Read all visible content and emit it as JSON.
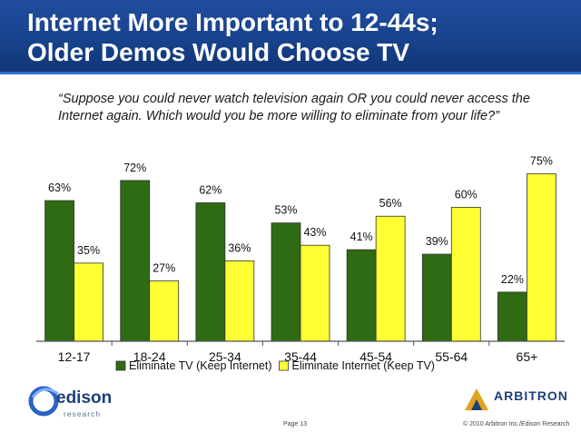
{
  "header": {
    "title": "Internet More Important to 12-44s;\nOlder Demos Would Choose TV"
  },
  "question": "“Suppose you could never watch television again OR you could never access the Internet again. Which would you be more willing to eliminate from your life?”",
  "colors": {
    "header_bg": "#1a4590",
    "series_tv": "#2e6b12",
    "series_internet": "#ffff33"
  },
  "chart_data": {
    "type": "bar",
    "categories": [
      "12-17",
      "18-24",
      "25-34",
      "35-44",
      "45-54",
      "55-64",
      "65+"
    ],
    "series": [
      {
        "name": "Eliminate TV (Keep Internet)",
        "values": [
          63,
          72,
          62,
          53,
          41,
          39,
          22
        ],
        "color": "#2e6b12"
      },
      {
        "name": "Eliminate Internet (Keep TV)",
        "values": [
          35,
          27,
          36,
          43,
          56,
          60,
          75
        ],
        "color": "#ffff33"
      }
    ],
    "data_labels": [
      [
        "63%",
        "72%",
        "62%",
        "53%",
        "41%",
        "39%",
        "22%"
      ],
      [
        "35%",
        "27%",
        "36%",
        "43%",
        "56%",
        "60%",
        "75%"
      ]
    ],
    "ylim": [
      0,
      100
    ],
    "grid": false,
    "legend_position": "bottom",
    "title": "",
    "xlabel": "",
    "ylabel": ""
  },
  "footer": {
    "edison_name": "edison",
    "edison_sub": "research",
    "arbitron_name": "ARBITRON",
    "page": "Page 13",
    "copyright": "© 2010 Arbitron Inc./Edison Research"
  }
}
